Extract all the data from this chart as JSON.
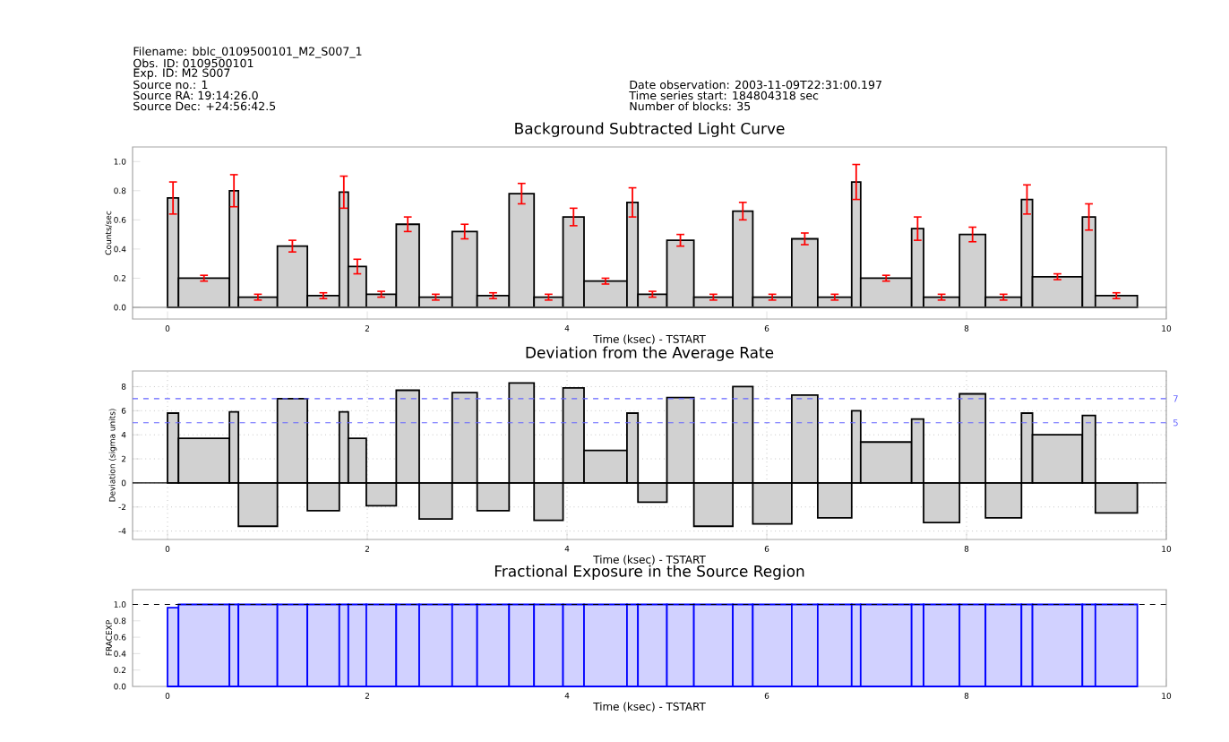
{
  "chart_data": [
    {
      "type": "histogram",
      "title": "Background Subtracted Light Curve",
      "xlabel": "Time (ksec) - TSTART",
      "ylabel": "Counts/sec",
      "annotations": [
        "Filename: bblc_0109500101_M2_S007_1",
        "Obs. ID: 0109500101",
        "Exp. ID: M2 S007",
        "Source no.: 1",
        "Source RA: 19:14:26.0",
        "Source Dec: +24:56:42.5",
        "Date observation: 2003-11-09T22:31:00.197",
        "Time series start: 184804318 sec",
        "Number of blocks: 35"
      ],
      "bins": [
        0,
        0.11,
        0.62,
        0.71,
        1.1,
        1.4,
        1.72,
        1.81,
        1.99,
        2.29,
        2.52,
        2.85,
        3.1,
        3.42,
        3.67,
        3.96,
        4.17,
        4.6,
        4.71,
        5.0,
        5.27,
        5.66,
        5.86,
        6.25,
        6.51,
        6.85,
        6.94,
        7.45,
        7.57,
        7.93,
        8.19,
        8.55,
        8.66,
        9.16,
        9.29,
        9.71
      ],
      "values": [
        0.75,
        0.2,
        0.8,
        0.07,
        0.42,
        0.08,
        0.79,
        0.28,
        0.09,
        0.57,
        0.07,
        0.52,
        0.08,
        0.78,
        0.07,
        0.62,
        0.18,
        0.72,
        0.09,
        0.46,
        0.07,
        0.66,
        0.07,
        0.47,
        0.07,
        0.86,
        0.2,
        0.54,
        0.07,
        0.5,
        0.07,
        0.74,
        0.21,
        0.62,
        0.08
      ],
      "errors": [
        0.11,
        0.02,
        0.11,
        0.02,
        0.04,
        0.02,
        0.11,
        0.05,
        0.02,
        0.05,
        0.02,
        0.05,
        0.02,
        0.07,
        0.02,
        0.06,
        0.02,
        0.1,
        0.02,
        0.04,
        0.02,
        0.06,
        0.02,
        0.04,
        0.02,
        0.12,
        0.02,
        0.08,
        0.02,
        0.05,
        0.02,
        0.1,
        0.02,
        0.09,
        0.02
      ],
      "color": "#000000",
      "xlim": [
        -0.35,
        10
      ],
      "ylim": [
        -0.08,
        1.1
      ],
      "xticks": [
        0,
        2,
        4,
        6,
        8,
        10
      ],
      "yticks": [
        {
          "value": 0,
          "label": "0.0"
        },
        {
          "value": 0.2,
          "label": "0.2"
        },
        {
          "value": 0.4,
          "label": "0.4"
        },
        {
          "value": 0.6,
          "label": "0.6"
        },
        {
          "value": 0.8,
          "label": "0.8"
        },
        {
          "value": 1.0,
          "label": "1.0"
        }
      ],
      "ref_lines": [
        {
          "axis": "y",
          "value": 0,
          "color": "#808080"
        }
      ]
    },
    {
      "type": "histogram",
      "title": "Deviation from the Average Rate",
      "xlabel": "Time (ksec) - TSTART",
      "ylabel": "Deviation (sigma units)",
      "bins": [
        0,
        0.11,
        0.62,
        0.71,
        1.1,
        1.4,
        1.72,
        1.81,
        1.99,
        2.29,
        2.52,
        2.85,
        3.1,
        3.42,
        3.67,
        3.96,
        4.17,
        4.6,
        4.71,
        5.0,
        5.27,
        5.66,
        5.86,
        6.25,
        6.51,
        6.85,
        6.94,
        7.45,
        7.57,
        7.93,
        8.19,
        8.55,
        8.66,
        9.16,
        9.29,
        9.71
      ],
      "values": [
        5.8,
        3.7,
        5.9,
        -3.6,
        7.0,
        -2.3,
        5.9,
        3.7,
        -1.9,
        7.7,
        -3.0,
        7.5,
        -2.3,
        8.3,
        -3.1,
        7.9,
        2.7,
        5.8,
        -1.6,
        7.1,
        -3.6,
        8.0,
        -3.4,
        7.3,
        -2.9,
        6.0,
        3.4,
        5.3,
        -3.3,
        7.4,
        -2.9,
        5.8,
        4.0,
        5.6,
        -2.5
      ],
      "color": "#000000",
      "grid": true,
      "xlim": [
        -0.35,
        10
      ],
      "ylim": [
        -4.7,
        9.3
      ],
      "xticks": [
        0,
        2,
        4,
        6,
        8,
        10
      ],
      "yticks": [
        -4,
        -2,
        0,
        2,
        4,
        6,
        8
      ],
      "ref_lines": [
        {
          "axis": "y",
          "value": 7,
          "label": "7",
          "color": "#6464ff",
          "line_style": "dashed"
        },
        {
          "axis": "y",
          "value": 5,
          "label": "5",
          "color": "#6464ff",
          "line_style": "dashed"
        },
        {
          "axis": "y",
          "value": 0,
          "color": "#000000"
        }
      ]
    },
    {
      "type": "histogram",
      "title": "Fractional Exposure in the Source Region",
      "xlabel": "Time (ksec) - TSTART",
      "ylabel": "FRACEXP",
      "bins": [
        0,
        0.11,
        0.62,
        0.71,
        1.1,
        1.4,
        1.72,
        1.81,
        1.99,
        2.29,
        2.52,
        2.85,
        3.1,
        3.42,
        3.67,
        3.96,
        4.17,
        4.6,
        4.71,
        5.0,
        5.27,
        5.66,
        5.86,
        6.25,
        6.51,
        6.85,
        6.94,
        7.45,
        7.57,
        7.93,
        8.19,
        8.55,
        8.66,
        9.16,
        9.29,
        9.71
      ],
      "values": [
        0.96,
        1.0,
        1.0,
        1.0,
        1.0,
        1.0,
        1.0,
        1.0,
        1.0,
        1.0,
        1.0,
        1.0,
        1.0,
        1.0,
        1.0,
        1.0,
        1.0,
        1.0,
        1.0,
        1.0,
        1.0,
        1.0,
        1.0,
        1.0,
        1.0,
        1.0,
        1.0,
        1.0,
        1.0,
        1.0,
        1.0,
        1.0,
        1.0,
        1.0,
        1.0
      ],
      "color": "#0000ff",
      "xlim": [
        -0.35,
        10
      ],
      "ylim": [
        0,
        1.18
      ],
      "xticks": [
        0,
        2,
        4,
        6,
        8,
        10
      ],
      "yticks": [
        {
          "value": 0,
          "label": "0.0"
        },
        {
          "value": 0.2,
          "label": "0.2"
        },
        {
          "value": 0.4,
          "label": "0.4"
        },
        {
          "value": 0.6,
          "label": "0.6"
        },
        {
          "value": 0.8,
          "label": "0.8"
        },
        {
          "value": 1.0,
          "label": "1.0"
        }
      ],
      "ref_lines": [
        {
          "axis": "y",
          "value": 1.0,
          "color": "#000000",
          "line_style": "dashed"
        }
      ]
    }
  ]
}
